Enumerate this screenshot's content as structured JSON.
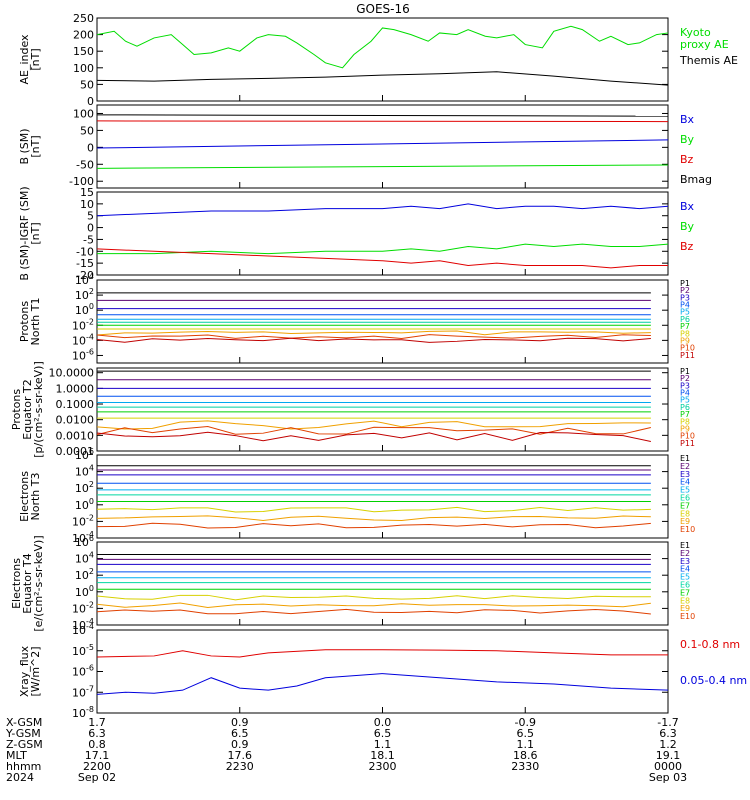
{
  "title": "GOES-16",
  "colors": {
    "black": "#000000",
    "red": "#e00000",
    "green": "#00dd00",
    "blue": "#0000dd",
    "proton_channels": [
      "#000000",
      "#5a0070",
      "#1a00c8",
      "#0050f0",
      "#00a8f0",
      "#00d0a0",
      "#00d000",
      "#d8d000",
      "#f0a000",
      "#e04000",
      "#c00000"
    ],
    "electron_channels": [
      "#000000",
      "#5a0070",
      "#1a00c8",
      "#0050f0",
      "#00b0f0",
      "#00d8a0",
      "#00d000",
      "#d8d000",
      "#f0a000",
      "#e04000",
      "#c00000"
    ]
  },
  "chart_data": [
    {
      "panel": "ae",
      "type": "line",
      "ylabel": [
        "AE_index",
        "[nT]"
      ],
      "ylim": [
        0,
        250
      ],
      "yticks": [
        "0",
        "50",
        "100",
        "150",
        "200",
        "250"
      ],
      "series": [
        {
          "name": "Kyoto proxy AE",
          "color": "#00dd00",
          "x": [
            0,
            3,
            5,
            7,
            10,
            13,
            15,
            17,
            20,
            23,
            25,
            28,
            30,
            33,
            35,
            38,
            40,
            43,
            45,
            48,
            50,
            52,
            55,
            58,
            60,
            63,
            65,
            68,
            70,
            73,
            75,
            78,
            80,
            83,
            85,
            88,
            90,
            93,
            95,
            98,
            100
          ],
          "y": [
            200,
            210,
            180,
            165,
            190,
            200,
            170,
            140,
            145,
            160,
            150,
            190,
            200,
            195,
            175,
            140,
            115,
            100,
            140,
            180,
            220,
            215,
            200,
            180,
            205,
            200,
            215,
            195,
            190,
            200,
            170,
            160,
            210,
            225,
            215,
            180,
            195,
            170,
            175,
            200,
            205
          ]
        },
        {
          "name": "Themis AE",
          "color": "#000000",
          "x": [
            0,
            10,
            20,
            30,
            40,
            50,
            60,
            70,
            80,
            90,
            100
          ],
          "y": [
            62,
            60,
            65,
            68,
            72,
            78,
            82,
            88,
            75,
            60,
            48
          ]
        }
      ]
    },
    {
      "panel": "b_sm",
      "type": "line",
      "ylabel": [
        "B (SM)",
        "[nT]"
      ],
      "ylim": [
        -120,
        125
      ],
      "yticks": [
        "-100",
        "-50",
        "0",
        "50",
        "100"
      ],
      "series": [
        {
          "name": "Bx",
          "color": "#0000dd",
          "x": [
            0,
            100
          ],
          "y": [
            -2,
            22
          ]
        },
        {
          "name": "By",
          "color": "#00dd00",
          "x": [
            0,
            100
          ],
          "y": [
            -62,
            -52
          ]
        },
        {
          "name": "Bz",
          "color": "#e00000",
          "x": [
            0,
            100
          ],
          "y": [
            78,
            76
          ]
        },
        {
          "name": "Bmag",
          "color": "#000000",
          "x": [
            0,
            100
          ],
          "y": [
            96,
            92
          ]
        }
      ]
    },
    {
      "panel": "b_igrf",
      "type": "line",
      "ylabel": [
        "B (SM)-IGRF (SM)",
        "[nT]"
      ],
      "ylim": [
        -20,
        15
      ],
      "yticks": [
        "-20",
        "-15",
        "-10",
        "-5",
        "0",
        "5",
        "10",
        "15"
      ],
      "series": [
        {
          "name": "Bx",
          "color": "#0000dd",
          "x": [
            0,
            10,
            20,
            30,
            40,
            50,
            55,
            60,
            65,
            70,
            75,
            80,
            85,
            90,
            95,
            100
          ],
          "y": [
            5,
            6,
            7,
            7,
            8,
            8,
            9,
            8,
            10,
            8,
            9,
            9,
            8,
            9,
            8,
            9
          ]
        },
        {
          "name": "By",
          "color": "#00dd00",
          "x": [
            0,
            10,
            20,
            30,
            40,
            50,
            55,
            60,
            65,
            70,
            75,
            80,
            85,
            90,
            95,
            100
          ],
          "y": [
            -11,
            -11,
            -10,
            -11,
            -10,
            -10,
            -9,
            -10,
            -8,
            -9,
            -7,
            -8,
            -7,
            -8,
            -8,
            -7
          ]
        },
        {
          "name": "Bz",
          "color": "#e00000",
          "x": [
            0,
            10,
            20,
            30,
            40,
            50,
            55,
            60,
            65,
            70,
            75,
            80,
            85,
            90,
            95,
            100
          ],
          "y": [
            -9,
            -10,
            -11,
            -12,
            -13,
            -14,
            -15,
            -14,
            -16,
            -15,
            -16,
            -16,
            -16,
            -17,
            -16,
            -16
          ]
        }
      ]
    },
    {
      "panel": "protons_north",
      "type": "line",
      "log": true,
      "ylabel": [
        "Protons",
        "North T1"
      ],
      "ylim_log10": [
        -7,
        4
      ],
      "yticks": [
        "10^-6",
        "10^-4",
        "10^-2",
        "10^0",
        "10^2",
        "10^4"
      ],
      "channels": [
        "P1",
        "P2",
        "P3",
        "P4",
        "P5",
        "P6",
        "P7",
        "P8",
        "P9",
        "P10",
        "P11"
      ],
      "levels_log10": [
        2.3,
        1.3,
        0.2,
        -0.6,
        -1.2,
        -1.6,
        -2.0,
        -2.5,
        -3.0,
        -3.5,
        -4.0
      ]
    },
    {
      "panel": "protons_equator",
      "type": "line",
      "log": true,
      "ylabel": [
        "Protons",
        "Equator T2",
        "[p/(cm²-s-sr-keV)]"
      ],
      "ylim_log10": [
        -4,
        1.3
      ],
      "yticks": [
        "0.0001",
        "0.0010",
        "0.0100",
        "0.1000",
        "1.0000",
        "10.0000"
      ],
      "channels": [
        "P1",
        "P2",
        "P3",
        "P4",
        "P5",
        "P6",
        "P7",
        "P8",
        "P9",
        "P10",
        "P11"
      ],
      "levels_log10": [
        1.1,
        0.55,
        0.0,
        -0.5,
        -0.9,
        -1.2,
        -1.5,
        -1.9,
        -2.3,
        -2.7,
        -3.1
      ]
    },
    {
      "panel": "electrons_north",
      "type": "line",
      "log": true,
      "ylabel": [
        "Electrons",
        "North T3"
      ],
      "ylim_log10": [
        -4,
        6
      ],
      "yticks": [
        "10^-4",
        "10^-2",
        "10^0",
        "10^2",
        "10^4",
        "10^6"
      ],
      "channels": [
        "E1",
        "E2",
        "E3",
        "E4",
        "E5",
        "E6",
        "E7",
        "E8",
        "E9",
        "E10"
      ],
      "levels_log10": [
        4.7,
        4.2,
        3.6,
        2.6,
        1.8,
        1.2,
        0.4,
        -0.6,
        -1.6,
        -2.5
      ]
    },
    {
      "panel": "electrons_equator",
      "type": "line",
      "log": true,
      "ylabel": [
        "Electrons",
        "Equator T4",
        "[e/(cm²-s-sr-keV)]"
      ],
      "ylim_log10": [
        -4,
        6
      ],
      "yticks": [
        "10^-4",
        "10^-2",
        "10^0",
        "10^2",
        "10^4",
        "10^6"
      ],
      "channels": [
        "E1",
        "E2",
        "E3",
        "E4",
        "E5",
        "E6",
        "E7",
        "E8",
        "E9",
        "E10"
      ],
      "levels_log10": [
        4.5,
        3.9,
        3.3,
        2.4,
        1.7,
        1.1,
        0.3,
        -0.7,
        -1.6,
        -2.4
      ]
    },
    {
      "panel": "xray",
      "type": "line",
      "log": true,
      "ylabel": [
        "Xray_flux",
        "[W/m^2]"
      ],
      "ylim_log10": [
        -8,
        -4
      ],
      "yticks": [
        "10^-8",
        "10^-7",
        "10^-6",
        "10^-5",
        "10^-4"
      ],
      "series": [
        {
          "name": "0.1-0.8 nm",
          "color": "#e00000",
          "x": [
            0,
            10,
            15,
            20,
            25,
            30,
            40,
            50,
            60,
            70,
            80,
            90,
            100
          ],
          "y": [
            -5.3,
            -5.25,
            -5.0,
            -5.25,
            -5.3,
            -5.1,
            -4.95,
            -4.95,
            -4.97,
            -5.0,
            -5.1,
            -5.2,
            -5.2
          ]
        },
        {
          "name": "0.05-0.4 nm",
          "color": "#0000dd",
          "x": [
            0,
            5,
            10,
            15,
            20,
            25,
            30,
            35,
            40,
            50,
            60,
            70,
            80,
            90,
            100
          ],
          "y": [
            -7.1,
            -7.0,
            -7.05,
            -6.9,
            -6.3,
            -6.8,
            -6.9,
            -6.7,
            -6.3,
            -6.1,
            -6.3,
            -6.5,
            -6.6,
            -6.8,
            -6.9
          ]
        }
      ]
    }
  ],
  "xaxis": {
    "row_labels": [
      "X-GSM",
      "Y-GSM",
      "Z-GSM",
      "MLT",
      "hhmm",
      "2024"
    ],
    "columns": [
      [
        "1.7",
        "6.3",
        "0.8",
        "17.1",
        "2200",
        "Sep 02"
      ],
      [
        "0.9",
        "6.5",
        "0.9",
        "17.6",
        "2230",
        ""
      ],
      [
        "0.0",
        "6.5",
        "1.1",
        "18.1",
        "2300",
        ""
      ],
      [
        "-0.9",
        "6.5",
        "1.1",
        "18.6",
        "2330",
        ""
      ],
      [
        "-1.7",
        "6.3",
        "1.2",
        "19.1",
        "0000",
        "Sep 03"
      ]
    ]
  }
}
